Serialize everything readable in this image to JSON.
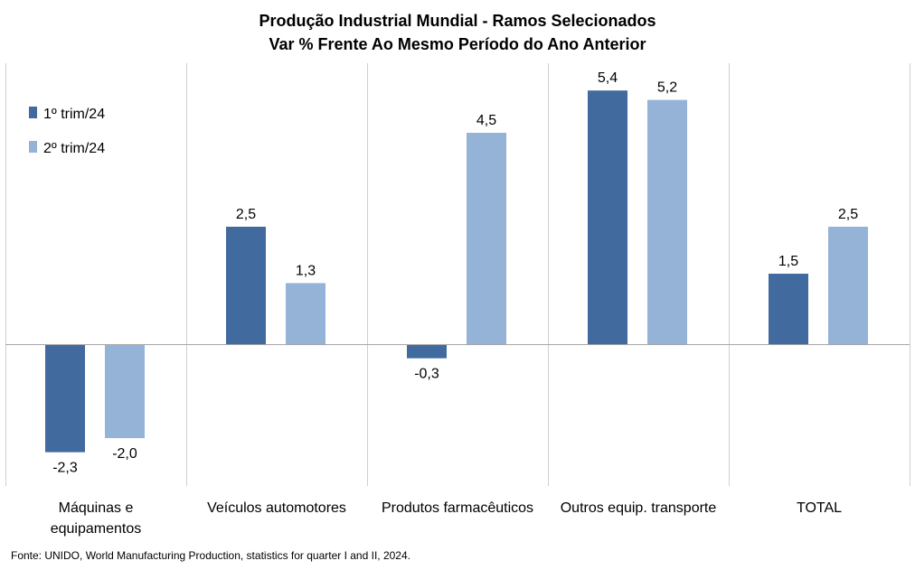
{
  "chart_data": {
    "type": "bar",
    "title": "Produção Industrial Mundial - Ramos Selecionados",
    "subtitle": "Var % Frente Ao Mesmo Período do Ano Anterior",
    "categories": [
      [
        "Máquinas e",
        "equipamentos"
      ],
      [
        "Veículos automotores"
      ],
      [
        "Produtos farmacêuticos"
      ],
      [
        "Outros equip. transporte"
      ],
      [
        "TOTAL"
      ]
    ],
    "series": [
      {
        "name": "1º trim/24",
        "color": "#416a9e",
        "values": [
          -2.3,
          2.5,
          -0.3,
          5.4,
          1.5
        ],
        "labels": [
          "-2,3",
          "2,5",
          "-0,3",
          "5,4",
          "1,5"
        ]
      },
      {
        "name": "2º trim/24",
        "color": "#95b3d7",
        "values": [
          -2.0,
          1.3,
          4.5,
          5.2,
          2.5
        ],
        "labels": [
          "-2,0",
          "1,3",
          "4,5",
          "5,2",
          "2,5"
        ]
      }
    ],
    "ylim": [
      -3,
      6
    ],
    "grid": false,
    "legend": "top-left"
  },
  "source": "Fonte: UNIDO, World Manufacturing Production, statistics for quarter I and II, 2024."
}
